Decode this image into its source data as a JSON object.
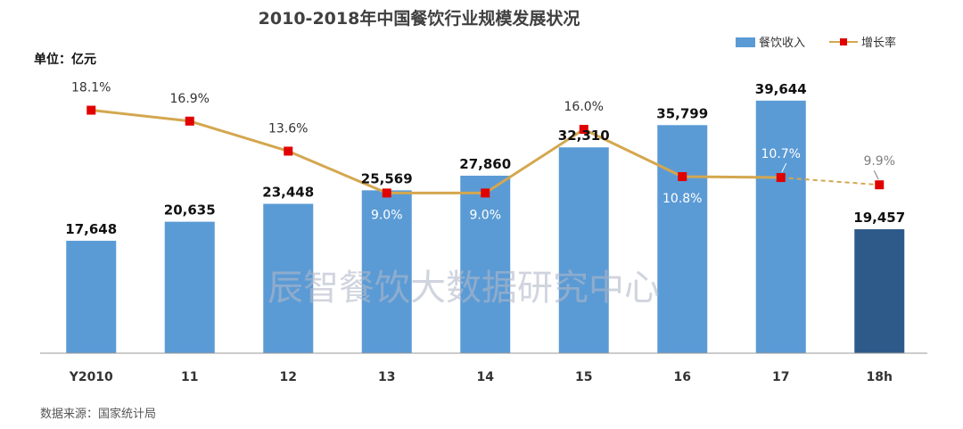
{
  "chart_data": {
    "type": "bar",
    "title": "2010-2018年中国餐饮行业规模发展状况",
    "unit_label": "单位：亿元",
    "source": "数据来源：国家统计局",
    "watermark": "辰智餐饮大数据研究中心",
    "categories": [
      "Y2010",
      "11",
      "12",
      "13",
      "14",
      "15",
      "16",
      "17",
      "18h"
    ],
    "value_labels": [
      "17,648",
      "20,635",
      "23,448",
      "25,569",
      "27,860",
      "32,310",
      "35,799",
      "39,644",
      "19,457"
    ],
    "rate_labels": [
      "18.1%",
      "16.9%",
      "13.6%",
      "9.0%",
      "9.0%",
      "16.0%",
      "10.8%",
      "10.7%",
      "9.9%"
    ],
    "series": [
      {
        "name": "餐饮收入",
        "type": "bar",
        "values": [
          17648,
          20635,
          23448,
          25569,
          27860,
          32310,
          35799,
          39644,
          19457
        ],
        "color": "#5B9BD5",
        "highlight_color": "#2E5A8A",
        "highlight_index": 8
      },
      {
        "name": "增长率",
        "type": "line",
        "values": [
          18.1,
          16.9,
          13.6,
          9.0,
          9.0,
          16.0,
          10.8,
          10.7,
          9.9
        ],
        "line_color": "#D4A74F",
        "marker_color": "#E00000",
        "dashed_from_index": 7
      }
    ],
    "ylim": [
      0,
      42000
    ],
    "y2lim": [
      -8.6,
      20.8
    ],
    "grid": false,
    "legend_position": "top-right"
  }
}
